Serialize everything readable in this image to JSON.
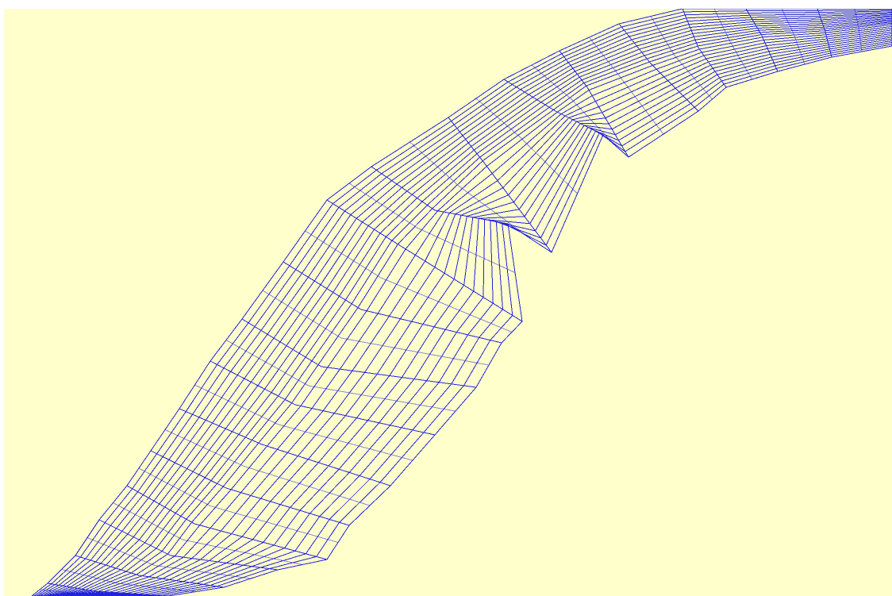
{
  "colors": {
    "background": "#ffffcc",
    "page": "#ffffff",
    "mesh_line": "#2222dd"
  },
  "mesh": {
    "kind": "curvilinear river channel grid",
    "longitudinal_line_count": 26,
    "cross_section_count": 21
  }
}
